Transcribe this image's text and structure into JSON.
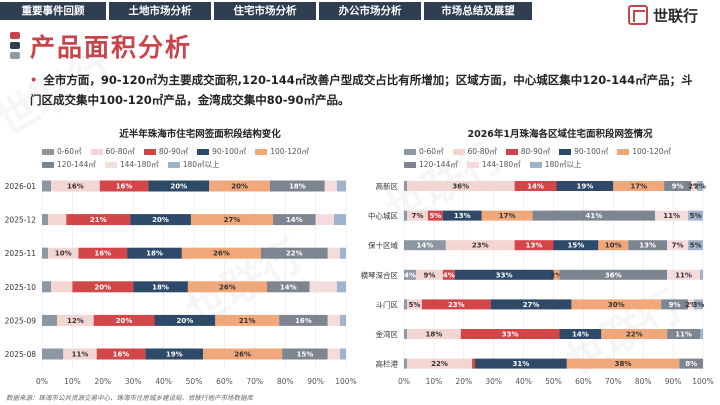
{
  "nav": {
    "tabs": [
      "重要事件回顾",
      "土地市场分析",
      "住宅市场分析",
      "办公市场分析",
      "市场总结及展望"
    ],
    "active": 2
  },
  "logo": {
    "text": "世联行"
  },
  "watermark": "世联行",
  "page": {
    "title": "产品面积分析",
    "summary": "全市方面，90-120㎡为主要成交面积,120-144㎡改善户型成交占比有所增加；区域方面，中心城区集中120-144㎡产品；斗门区成交集中100-120㎡产品，金湾成交集中80-90㎡产品。"
  },
  "colors": {
    "title_red": "#c9434a",
    "nav_dark": "#2f3e50",
    "mark_bars": [
      "#c9434a",
      "#2f3e50",
      "#8f9aa6"
    ]
  },
  "source": "数据来源：珠海市公共资源交易中心、珠海市住房城乡建设局、世联行地产市场数据库",
  "chart_data": [
    {
      "type": "bar",
      "orientation": "horizontal",
      "stacked": true,
      "title": "近半年珠海市住宅网签面积段结构变化",
      "categories": [
        "2026-01",
        "2025-12",
        "2025-11",
        "2025-10",
        "2025-09",
        "2025-08"
      ],
      "xlim": [
        0,
        100
      ],
      "xticks": [
        "0%",
        "10%",
        "20%",
        "30%",
        "40%",
        "50%",
        "60%",
        "70%",
        "80%",
        "90%",
        "100%"
      ],
      "label_min": 10,
      "series": [
        {
          "name": "0-60㎡",
          "color": "#8c97a3",
          "values": [
            3,
            2,
            2,
            3,
            5,
            7
          ]
        },
        {
          "name": "60-80㎡",
          "color": "#f3d5d2",
          "values": [
            16,
            6,
            10,
            7,
            12,
            11
          ]
        },
        {
          "name": "80-90㎡",
          "color": "#d24648",
          "values": [
            16,
            21,
            16,
            20,
            20,
            16
          ]
        },
        {
          "name": "90-100㎡",
          "color": "#2f4a68",
          "values": [
            20,
            20,
            18,
            18,
            20,
            19
          ]
        },
        {
          "name": "100-120㎡",
          "color": "#f0a87a",
          "values": [
            20,
            27,
            26,
            26,
            21,
            26
          ]
        },
        {
          "name": "120-144㎡",
          "color": "#7d8590",
          "values": [
            18,
            14,
            22,
            14,
            16,
            15
          ]
        },
        {
          "name": "144-180㎡",
          "color": "#f5dcdc",
          "values": [
            4,
            6,
            4,
            9,
            4,
            4
          ]
        },
        {
          "name": "180㎡以上",
          "color": "#9fb3cc",
          "values": [
            3,
            4,
            2,
            3,
            2,
            2
          ]
        }
      ]
    },
    {
      "type": "bar",
      "orientation": "horizontal",
      "stacked": true,
      "title": "2026年1月珠海各区域住宅面积段网签情况",
      "categories": [
        "高新区",
        "中心城区",
        "保十区域",
        "横琴深合区",
        "斗门区",
        "金湾区",
        "高栏港"
      ],
      "xlim": [
        0,
        100
      ],
      "xticks": [
        "0%",
        "10%",
        "20%",
        "30%",
        "40%",
        "50%",
        "60%",
        "70%",
        "80%",
        "90%",
        "100%"
      ],
      "label_min": 2,
      "series": [
        {
          "name": "0-60㎡",
          "color": "#8c97a3",
          "values": [
            1,
            1,
            14,
            4,
            1,
            1,
            1
          ]
        },
        {
          "name": "60-80㎡",
          "color": "#f3d5d2",
          "values": [
            36,
            7,
            23,
            9,
            5,
            18,
            22
          ]
        },
        {
          "name": "80-90㎡",
          "color": "#d24648",
          "values": [
            14,
            5,
            13,
            4,
            23,
            33,
            1
          ]
        },
        {
          "name": "90-100㎡",
          "color": "#2f4a68",
          "values": [
            19,
            13,
            15,
            33,
            27,
            14,
            31
          ]
        },
        {
          "name": "100-120㎡",
          "color": "#f0a87a",
          "values": [
            17,
            17,
            10,
            2,
            30,
            22,
            38
          ]
        },
        {
          "name": "120-144㎡",
          "color": "#7d8590",
          "values": [
            9,
            41,
            13,
            36,
            9,
            11,
            8
          ]
        },
        {
          "name": "144-180㎡",
          "color": "#f5dcdc",
          "values": [
            2,
            11,
            7,
            11,
            2,
            0,
            0
          ]
        },
        {
          "name": "180㎡以上",
          "color": "#9fb3cc",
          "values": [
            2,
            5,
            5,
            1,
            3,
            1,
            0
          ]
        }
      ]
    }
  ]
}
